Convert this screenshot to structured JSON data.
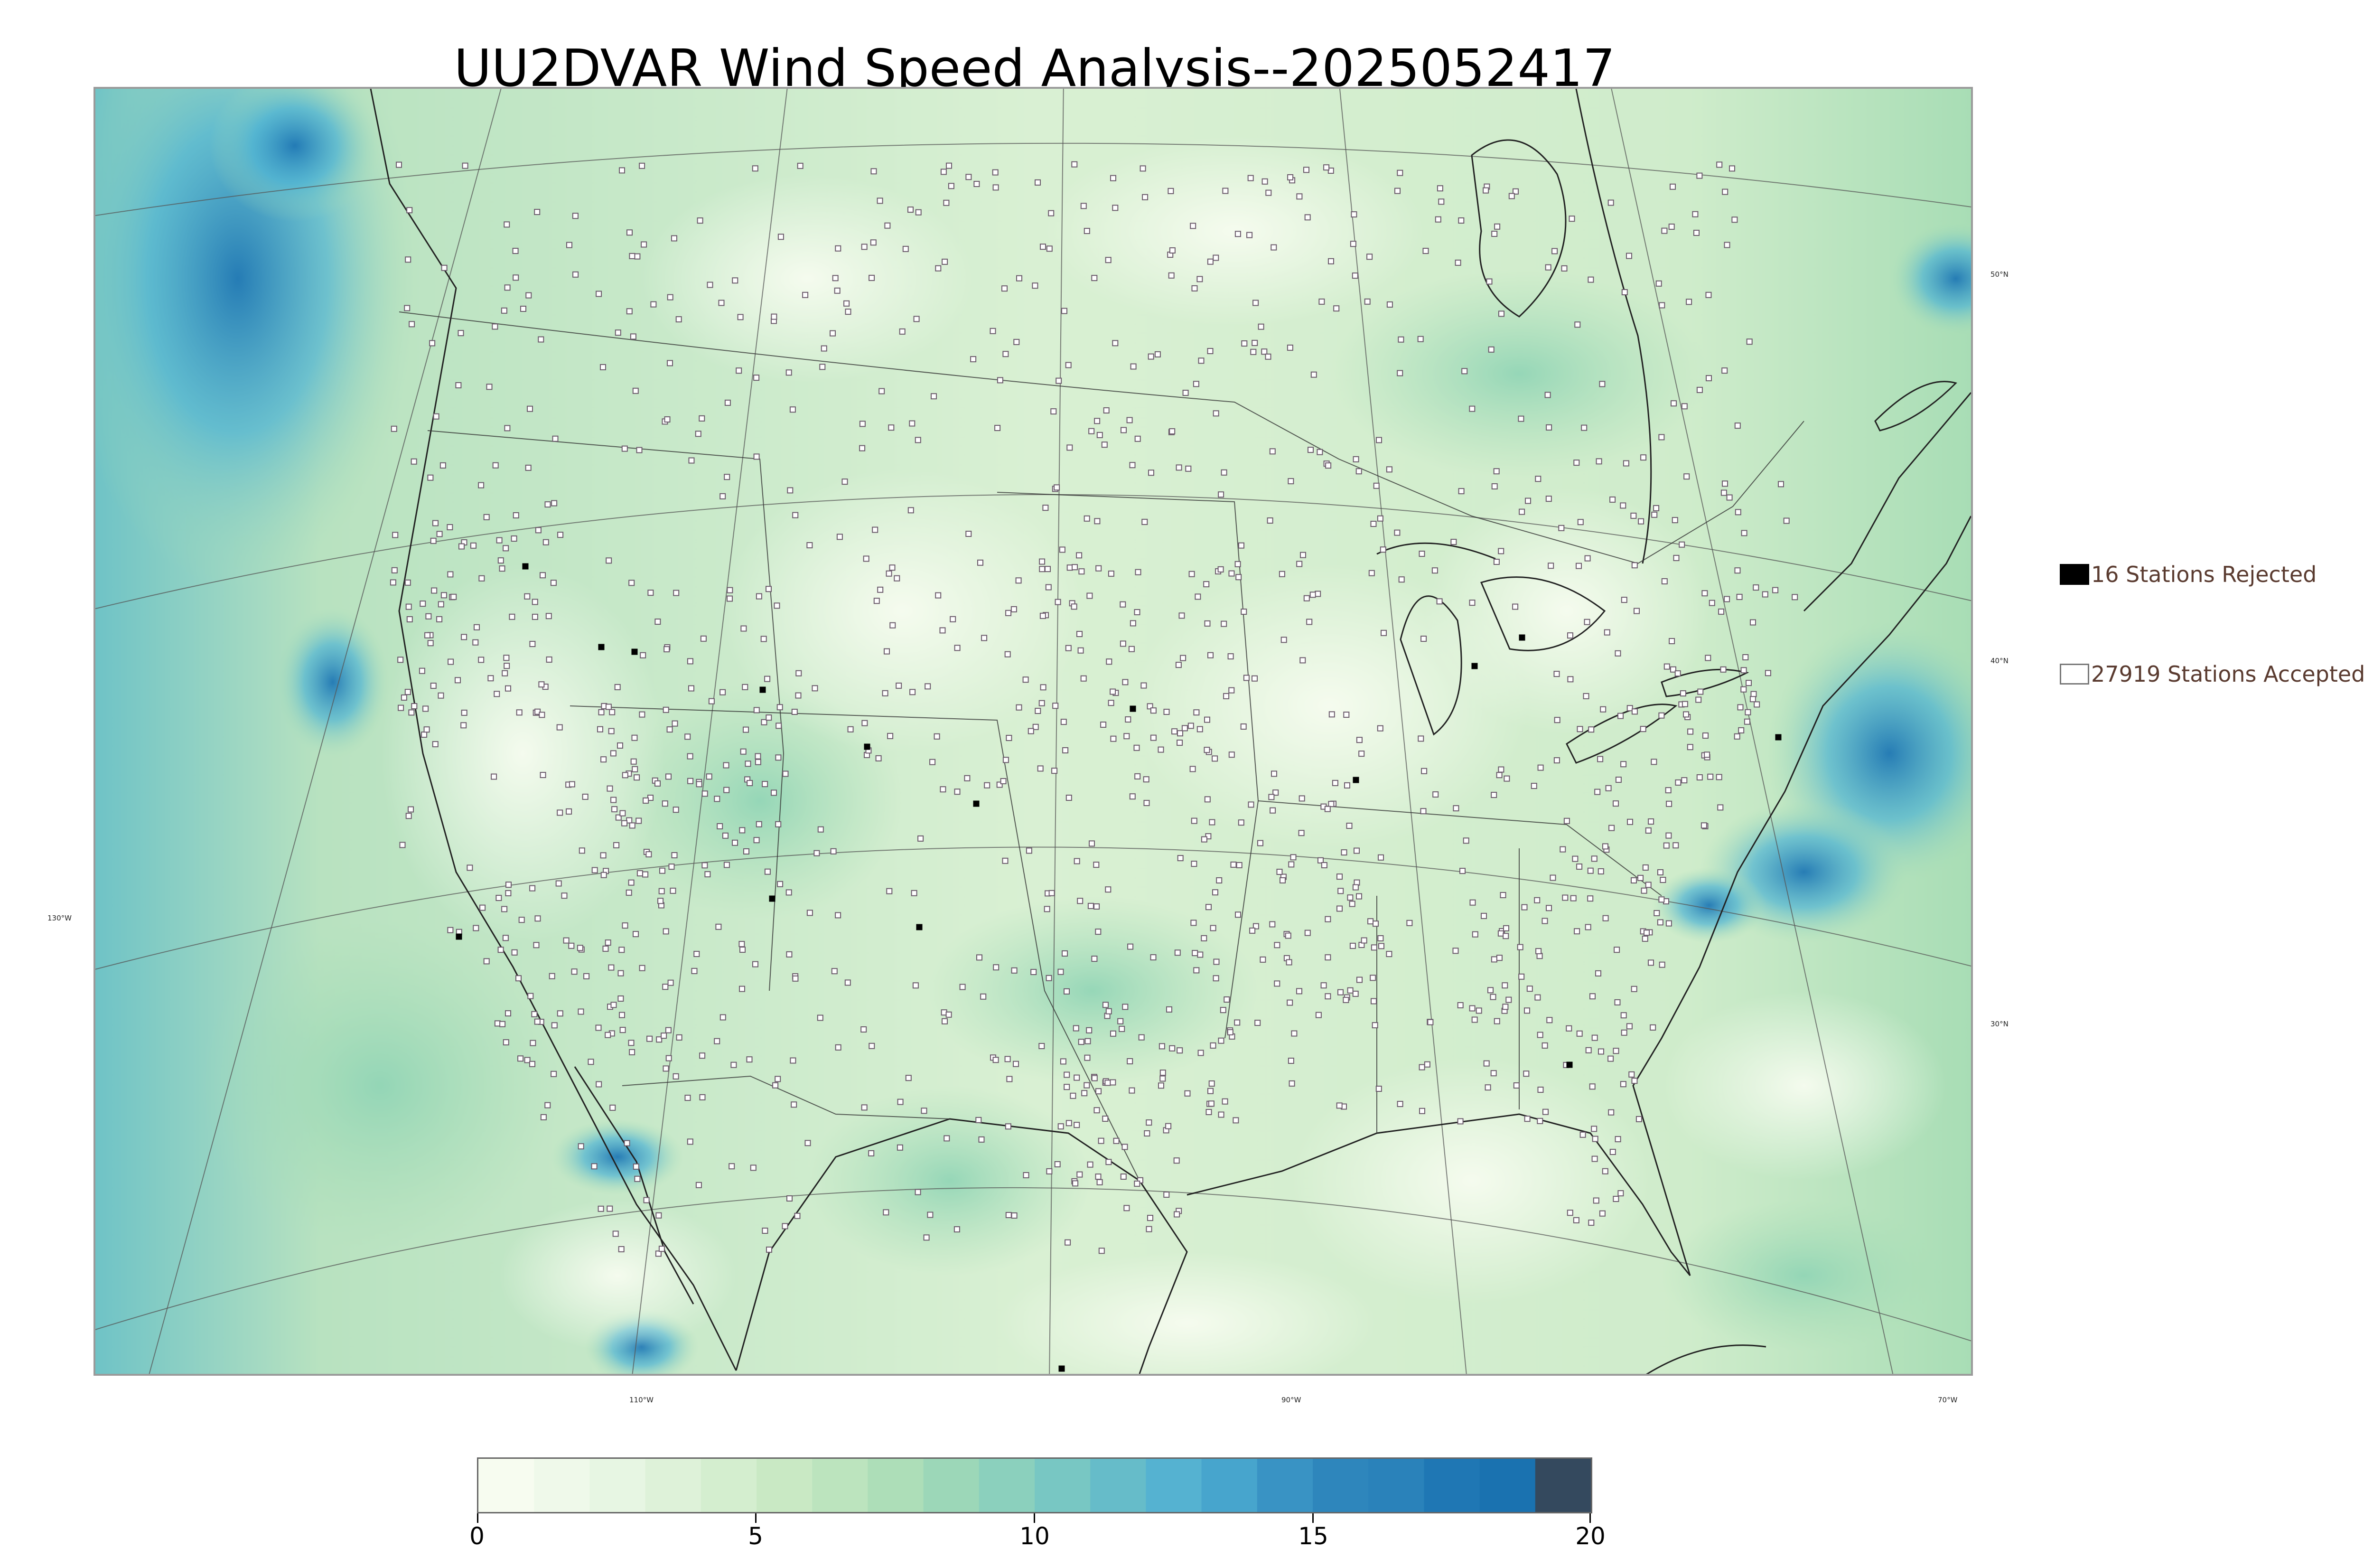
{
  "title": "UU2DVAR Wind Speed Analysis--2025052417",
  "map": {
    "latitude_labels": [
      "50°N",
      "40°N",
      "30°N"
    ],
    "longitude_labels": [
      "130°W",
      "110°W",
      "90°W",
      "70°W"
    ],
    "field": "wind speed",
    "colormap": [
      "#f7fcf0",
      "#e0f3db",
      "#ccebc5",
      "#a8ddb5",
      "#7bccc4",
      "#4eb3d3",
      "#2b8cbe",
      "#0868ac",
      "#2e4a62"
    ]
  },
  "legend": {
    "rejected_label": "16 Stations Rejected",
    "accepted_label": "27919 Stations Accepted",
    "rejected_color": "#000000",
    "accepted_color": "#ffffff"
  },
  "colorbar": {
    "min": 0,
    "max": 20,
    "ticks": [
      "0",
      "5",
      "10",
      "15",
      "20"
    ],
    "colors": [
      "#f7fcf0",
      "#eff9ea",
      "#e7f6e3",
      "#def2d9",
      "#d4eecf",
      "#c9e9c4",
      "#bce4be",
      "#addeb8",
      "#9cd7b8",
      "#8bd0bd",
      "#78c7c3",
      "#66bcc9",
      "#55b2d1",
      "#47a5cd",
      "#3993c4",
      "#2e86bc",
      "#2a82ba",
      "#1f77b4",
      "#1a72b0",
      "#34495e"
    ]
  }
}
